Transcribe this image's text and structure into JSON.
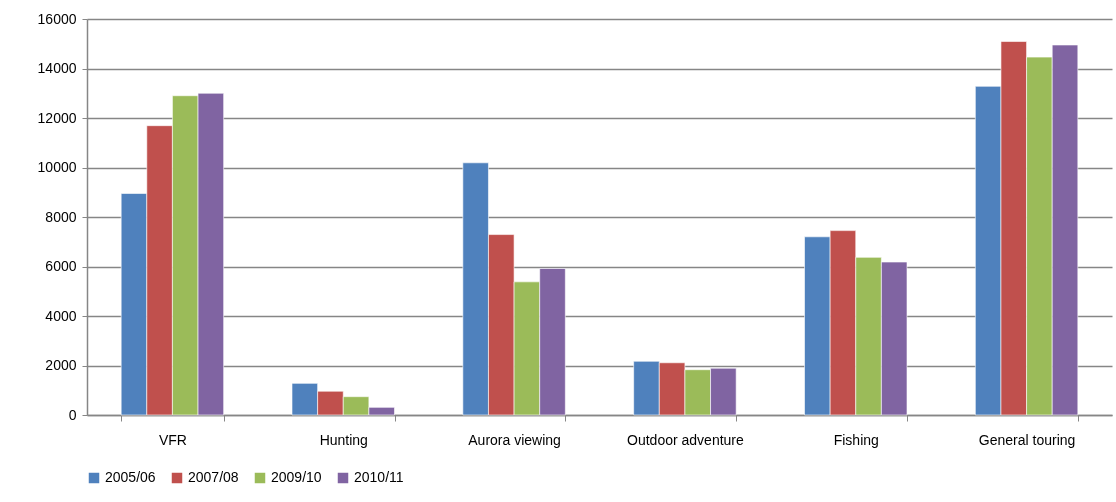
{
  "chart_data": {
    "type": "bar",
    "categories": [
      "VFR",
      "Hunting",
      "Aurora viewing",
      "Outdoor adventure",
      "Fishing",
      "General touring"
    ],
    "series": [
      {
        "name": "2005/06",
        "color": "#4f81bd",
        "values": [
          8950,
          1280,
          10190,
          2170,
          7200,
          13280
        ]
      },
      {
        "name": "2007/08",
        "color": "#c0504d",
        "values": [
          11690,
          960,
          7290,
          2110,
          7450,
          15090
        ]
      },
      {
        "name": "2009/10",
        "color": "#9bbb59",
        "values": [
          12900,
          740,
          5380,
          1830,
          6370,
          14460
        ]
      },
      {
        "name": "2010/11",
        "color": "#8064a2",
        "values": [
          13000,
          310,
          5920,
          1890,
          6180,
          14950
        ]
      }
    ],
    "ylim": [
      0,
      16000
    ],
    "yticks": [
      0,
      2000,
      4000,
      6000,
      8000,
      10000,
      12000,
      14000,
      16000
    ],
    "grid": "y",
    "legend": "bottom"
  }
}
